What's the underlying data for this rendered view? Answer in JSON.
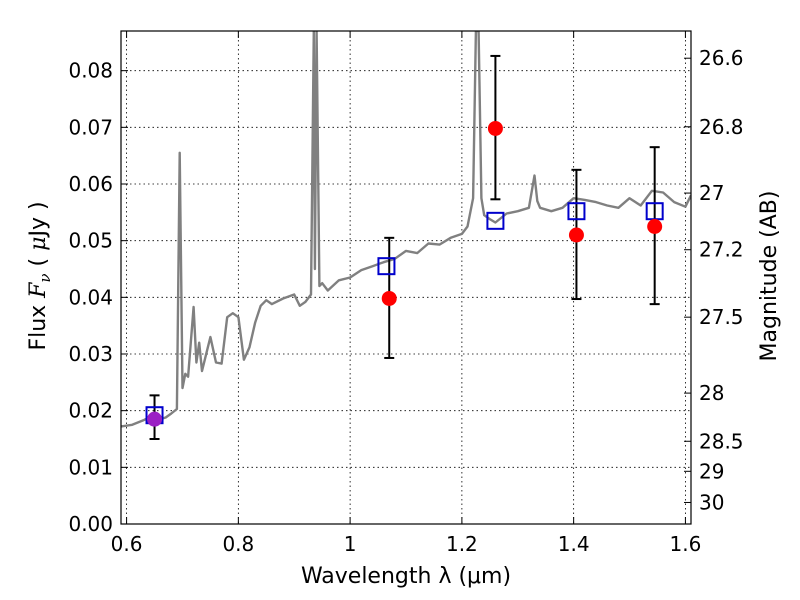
{
  "chart_data": {
    "type": "scatter",
    "xlabel": "Wavelength  λ (μm)",
    "ylabel": "Flux  F_ν  ( μJy )",
    "ylabel_right": "Magnitude (AB)",
    "xlim": [
      0.59,
      1.61
    ],
    "ylim": [
      0.0,
      0.087
    ],
    "grid": true,
    "x_ticks": [
      0.6,
      0.8,
      1.0,
      1.2,
      1.4,
      1.6
    ],
    "x_tick_labels": [
      "0.6",
      "0.8",
      "1",
      "1.2",
      "1.4",
      "1.6"
    ],
    "y_ticks": [
      0.0,
      0.01,
      0.02,
      0.03,
      0.04,
      0.05,
      0.06,
      0.07,
      0.08
    ],
    "y_tick_labels": [
      "0.00",
      "0.01",
      "0.02",
      "0.03",
      "0.04",
      "0.05",
      "0.06",
      "0.07",
      "0.08"
    ],
    "right_ticks": [
      {
        "label": "26.6",
        "flux": 0.0822
      },
      {
        "label": "26.8",
        "flux": 0.0701
      },
      {
        "label": "27",
        "flux": 0.0584
      },
      {
        "label": "27.2",
        "flux": 0.0484
      },
      {
        "label": "27.5",
        "flux": 0.0365
      },
      {
        "label": "28",
        "flux": 0.0231
      },
      {
        "label": "28.5",
        "flux": 0.0146
      },
      {
        "label": "29",
        "flux": 0.0093
      },
      {
        "label": "30",
        "flux": 0.0038
      }
    ],
    "series": [
      {
        "kind": "model_spectrum",
        "color": "#808080",
        "x": [
          0.59,
          0.61,
          0.63,
          0.64,
          0.65,
          0.66,
          0.67,
          0.68,
          0.69,
          0.695,
          0.7,
          0.705,
          0.71,
          0.72,
          0.725,
          0.73,
          0.735,
          0.74,
          0.745,
          0.75,
          0.76,
          0.77,
          0.78,
          0.79,
          0.8,
          0.81,
          0.82,
          0.83,
          0.84,
          0.85,
          0.86,
          0.88,
          0.9,
          0.91,
          0.92,
          0.93,
          0.935,
          0.937,
          0.94,
          0.945,
          0.95,
          0.96,
          0.98,
          1.0,
          1.02,
          1.04,
          1.06,
          1.08,
          1.1,
          1.12,
          1.14,
          1.16,
          1.18,
          1.2,
          1.21,
          1.22,
          1.225,
          1.23,
          1.235,
          1.24,
          1.25,
          1.26,
          1.28,
          1.3,
          1.32,
          1.33,
          1.335,
          1.34,
          1.36,
          1.38,
          1.4,
          1.42,
          1.44,
          1.46,
          1.48,
          1.5,
          1.52,
          1.54,
          1.56,
          1.58,
          1.6,
          1.61
        ],
        "y": [
          0.0172,
          0.0175,
          0.0183,
          0.0188,
          0.0186,
          0.0185,
          0.0188,
          0.0195,
          0.0203,
          0.0655,
          0.024,
          0.0265,
          0.026,
          0.0383,
          0.0285,
          0.032,
          0.027,
          0.029,
          0.031,
          0.033,
          0.0285,
          0.0283,
          0.0365,
          0.0372,
          0.0365,
          0.029,
          0.0312,
          0.0355,
          0.0385,
          0.0395,
          0.0388,
          0.0398,
          0.0405,
          0.0385,
          0.0392,
          0.0405,
          0.0875,
          0.045,
          0.0875,
          0.042,
          0.0425,
          0.0412,
          0.043,
          0.0435,
          0.0448,
          0.0455,
          0.0462,
          0.0468,
          0.0482,
          0.0478,
          0.0495,
          0.0493,
          0.0505,
          0.0512,
          0.0525,
          0.0575,
          0.0875,
          0.0875,
          0.0575,
          0.0545,
          0.0538,
          0.0532,
          0.0548,
          0.0552,
          0.0558,
          0.0615,
          0.057,
          0.0558,
          0.0552,
          0.0558,
          0.0575,
          0.0572,
          0.0568,
          0.0562,
          0.0558,
          0.0575,
          0.0562,
          0.0588,
          0.0585,
          0.0568,
          0.056,
          0.058
        ]
      },
      {
        "kind": "model_points",
        "marker": "open-square",
        "color": "#0000cc",
        "x": [
          0.65,
          1.065,
          1.26,
          1.405,
          1.545
        ],
        "y": [
          0.0192,
          0.0455,
          0.0535,
          0.0552,
          0.0552
        ]
      },
      {
        "kind": "observed_points",
        "marker": "filled-circle",
        "x": [
          0.65,
          1.07,
          1.26,
          1.405,
          1.545
        ],
        "y": [
          0.0185,
          0.0398,
          0.0698,
          0.051,
          0.0525
        ],
        "yerr_low": [
          0.0035,
          0.0105,
          0.0125,
          0.0113,
          0.0137
        ],
        "yerr_high": [
          0.0042,
          0.0107,
          0.0128,
          0.0115,
          0.014
        ],
        "colors": [
          "#9b1fc4",
          "#ff0000",
          "#ff0000",
          "#ff0000",
          "#ff0000"
        ]
      }
    ]
  }
}
